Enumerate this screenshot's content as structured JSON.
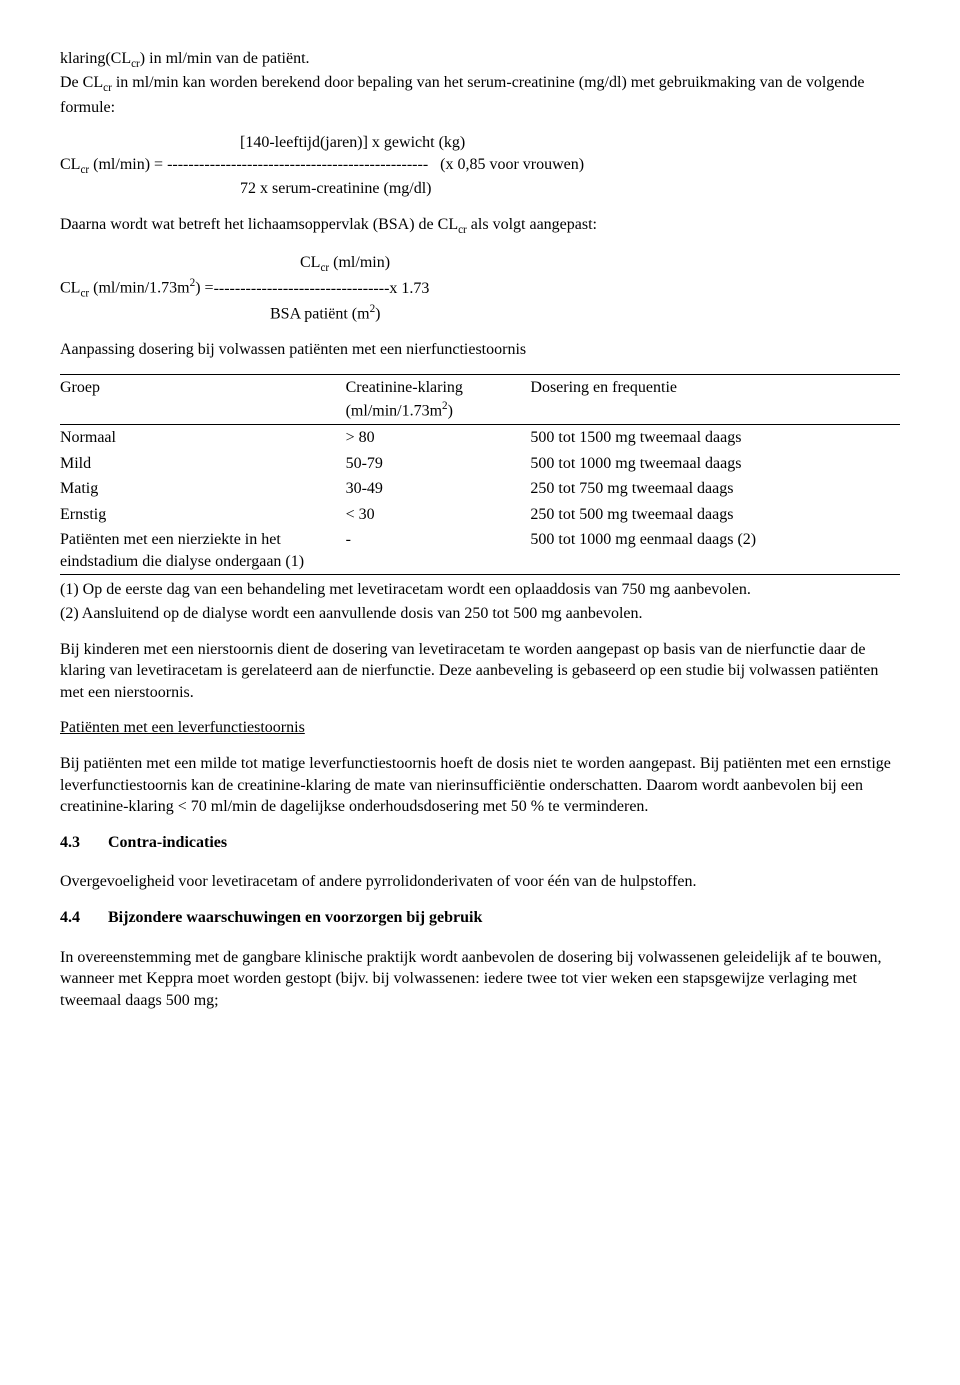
{
  "intro": {
    "line1": "klaring(CL<sub>cr</sub>) in ml/min van de patiënt.",
    "line2": "De CL<sub>cr</sub> in ml/min kan worden berekend door bepaling van het serum-creatinine (mg/dl) met gebruikmaking van de volgende formule:"
  },
  "formula1": {
    "top": "[140-leeftijd(jaren)] x gewicht (kg)",
    "left": "CL<sub>cr</sub> (ml/min) =",
    "dashes": "-------------------------------------------------",
    "right": "(x 0,85 voor vrouwen)",
    "bottom": "72 x serum-creatinine (mg/dl)"
  },
  "bsa_intro": "Daarna wordt wat betreft het lichaamsoppervlak (BSA) de CL<sub>cr</sub> als volgt aangepast:",
  "formula2": {
    "top": "CL<sub>cr</sub> (ml/min)",
    "left": "CL<sub>cr</sub> (ml/min/1.73m<sup>2</sup>) = ",
    "dashes": "---------------------------------",
    "right": " x 1.73",
    "bottom": "BSA patiënt (m<sup>2</sup>)"
  },
  "table_caption": "Aanpassing dosering bij volwassen patiënten met een nierfunctiestoornis",
  "table": {
    "headers": [
      "Groep",
      "Creatinine-klaring (ml/min/1.73m<sup>2</sup>)",
      "Dosering en frequentie"
    ],
    "rows": [
      [
        "Normaal",
        "> 80",
        "500 tot 1500 mg tweemaal daags"
      ],
      [
        "Mild",
        "50-79",
        "500 tot 1000 mg tweemaal daags"
      ],
      [
        "Matig",
        "30-49",
        "250 tot 750 mg tweemaal daags"
      ],
      [
        "Ernstig",
        "< 30",
        "250 tot 500 mg tweemaal daags"
      ],
      [
        "Patiënten met een nierziekte in het eindstadium die dialyse ondergaan (1)",
        "-",
        "500 tot 1000 mg eenmaal daags (2)"
      ]
    ]
  },
  "footnotes": {
    "f1": "(1) Op de eerste dag van een behandeling met levetiracetam wordt een oplaaddosis van 750 mg aanbevolen.",
    "f2": "(2) Aansluitend op de dialyse wordt een aanvullende dosis van 250 tot 500 mg aanbevolen."
  },
  "children_para": "Bij kinderen met een nierstoornis dient de dosering van levetiracetam te worden aangepast op basis van de nierfunctie daar de klaring van levetiracetam is gerelateerd aan de nierfunctie. Deze aanbeveling is gebaseerd op een studie bij volwassen patiënten met een nierstoornis.",
  "liver_heading": "Patiënten met een leverfunctiestoornis",
  "liver_para": "Bij patiënten met een milde tot matige leverfunctiestoornis hoeft de dosis niet te worden aangepast. Bij patiënten met een ernstige leverfunctiestoornis kan de creatinine-klaring de mate van nierinsufficiëntie onderschatten. Daarom wordt aanbevolen bij een creatinine-klaring < 70 ml/min de dagelijkse onderhoudsdosering met 50 % te verminderen.",
  "sec43": {
    "num": "4.3",
    "title": "Contra-indicaties"
  },
  "sec43_para": "Overgevoeligheid voor levetiracetam of andere pyrrolidonderivaten of voor één van de hulpstoffen.",
  "sec44": {
    "num": "4.4",
    "title": "Bijzondere waarschuwingen en voorzorgen bij gebruik"
  },
  "sec44_para": "In overeenstemming met de gangbare klinische praktijk wordt aanbevolen de dosering bij volwassenen geleidelijk af te bouwen, wanneer met Keppra moet worden gestopt (bijv. bij volwassenen: iedere twee tot vier weken een stapsgewijze verlaging met tweemaal daags 500 mg;"
}
